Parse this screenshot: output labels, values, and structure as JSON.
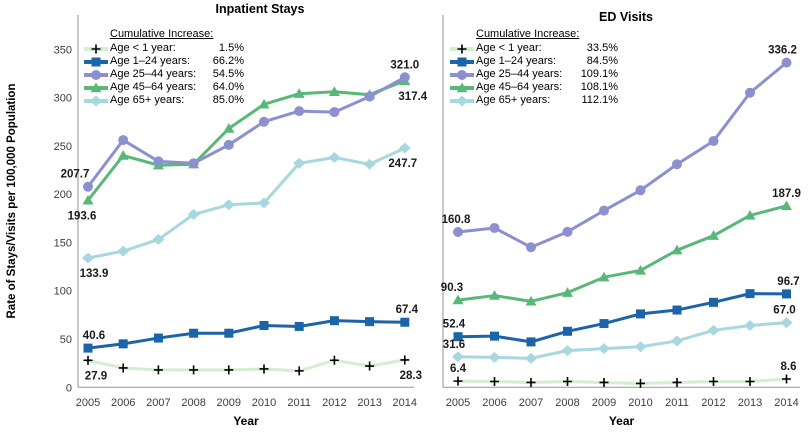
{
  "figure": {
    "y_axis_label": "Rate of Stays/Visits  per 100,000  Population",
    "x_axis_label": "Year"
  },
  "chart_data": [
    {
      "type": "line",
      "title": "Inpatient Stays",
      "xlabel": "Year",
      "ylabel": "Rate of Stays/Visits per 100,000 Population",
      "legend_title": "Cumulative Increase:",
      "legend_position": "top-left",
      "grid": false,
      "x": [
        2005,
        2006,
        2007,
        2008,
        2009,
        2010,
        2011,
        2012,
        2013,
        2014
      ],
      "ylim": [
        0,
        350
      ],
      "yticks": [
        0,
        50,
        100,
        150,
        200,
        250,
        300,
        350
      ],
      "series": [
        {
          "name": "Age < 1 year:",
          "pct": "1.5%",
          "marker": "plus",
          "color": "#d5edd0",
          "marker_color": "#000000",
          "values": [
            27.9,
            20,
            18,
            18,
            18,
            19,
            17,
            28,
            22,
            28.3
          ],
          "first_label": {
            "text": "27.9",
            "pos": "below",
            "dx": 8
          },
          "last_label": {
            "text": "28.3",
            "pos": "below",
            "dx": 6
          }
        },
        {
          "name": "Age 1–24 years:",
          "pct": "66.2%",
          "marker": "square",
          "color": "#1b64a9",
          "marker_color": "#1b64a9",
          "values": [
            40.6,
            45,
            51,
            56,
            56,
            64,
            63,
            69,
            68,
            67.4
          ],
          "first_label": {
            "text": "40.6",
            "pos": "above",
            "dx": 6
          },
          "last_label": {
            "text": "67.4",
            "pos": "above",
            "dx": 2
          }
        },
        {
          "name": "Age 25–44 years:",
          "pct": "54.5%",
          "marker": "circle",
          "color": "#8c90d0",
          "marker_color": "#8c90d0",
          "values": [
            207.7,
            256,
            234,
            232,
            251,
            275,
            286,
            285,
            301,
            321.0
          ],
          "first_label": {
            "text": "207.7",
            "pos": "above",
            "dx": -13
          },
          "last_label": {
            "text": "321.0",
            "pos": "above",
            "dx": 0
          }
        },
        {
          "name": "Age 45–64 years:",
          "pct": "64.0%",
          "marker": "triangle",
          "color": "#57b877",
          "marker_color": "#57b877",
          "values": [
            193.6,
            240,
            230,
            231,
            268,
            293,
            304,
            306,
            303,
            317.4
          ],
          "first_label": {
            "text": "193.6",
            "pos": "below",
            "dx": -6
          },
          "last_label": {
            "text": "317.4",
            "pos": "below",
            "dx": 8
          }
        },
        {
          "name": "Age 65+ years:",
          "pct": "85.0%",
          "marker": "diamond",
          "color": "#a8d7df",
          "marker_color": "#a8d7df",
          "values": [
            133.9,
            141,
            153,
            179,
            189,
            191,
            232,
            238,
            231,
            247.7
          ],
          "first_label": {
            "text": "133.9",
            "pos": "below",
            "dx": 6
          },
          "last_label": {
            "text": "247.7",
            "pos": "below",
            "dx": -2
          }
        }
      ]
    },
    {
      "type": "line",
      "title": "ED Visits",
      "xlabel": "Year",
      "ylabel": "",
      "legend_title": "Cumulative Increase:",
      "legend_position": "top-left",
      "grid": false,
      "x": [
        2005,
        2006,
        2007,
        2008,
        2009,
        2010,
        2011,
        2012,
        2013,
        2014
      ],
      "ylim": [
        0,
        350
      ],
      "yticks": [],
      "series": [
        {
          "name": "Age < 1 year:",
          "pct": "33.5%",
          "marker": "plus",
          "color": "#d5edd0",
          "marker_color": "#000000",
          "values": [
            6.4,
            6,
            5,
            6,
            5,
            4,
            5,
            6,
            6,
            8.6
          ],
          "first_label": {
            "text": "6.4",
            "pos": "above",
            "dx": 0
          },
          "last_label": {
            "text": "8.6",
            "pos": "above",
            "dx": 2
          }
        },
        {
          "name": "Age 1–24 years:",
          "pct": "84.5%",
          "marker": "square",
          "color": "#1b64a9",
          "marker_color": "#1b64a9",
          "values": [
            52.4,
            53,
            47,
            58,
            66,
            76,
            80,
            88,
            97,
            96.7
          ],
          "first_label": {
            "text": "52.4",
            "pos": "above",
            "dx": -4
          },
          "last_label": {
            "text": "96.7",
            "pos": "above",
            "dx": 2
          }
        },
        {
          "name": "Age 25–44 years:",
          "pct": "109.1%",
          "marker": "circle",
          "color": "#8c90d0",
          "marker_color": "#8c90d0",
          "values": [
            160.8,
            165,
            145,
            161,
            183,
            204,
            231,
            255,
            305,
            336.2
          ],
          "first_label": {
            "text": "160.8",
            "pos": "above",
            "dx": -2
          },
          "last_label": {
            "text": "336.2",
            "pos": "above",
            "dx": -4
          }
        },
        {
          "name": "Age 45–64 years:",
          "pct": "108.1%",
          "marker": "triangle",
          "color": "#57b877",
          "marker_color": "#57b877",
          "values": [
            90.3,
            95,
            89,
            98,
            114,
            121,
            142,
            157,
            178,
            187.9
          ],
          "first_label": {
            "text": "90.3",
            "pos": "above",
            "dx": -6
          },
          "last_label": {
            "text": "187.9",
            "pos": "above",
            "dx": 0
          }
        },
        {
          "name": "Age 65+ years:",
          "pct": "112.1%",
          "marker": "diamond",
          "color": "#a8d7df",
          "marker_color": "#a8d7df",
          "values": [
            31.6,
            31,
            30,
            38,
            40,
            42,
            48,
            59,
            64,
            67.0
          ],
          "first_label": {
            "text": "31.6",
            "pos": "above",
            "dx": -4
          },
          "last_label": {
            "text": "67.0",
            "pos": "above",
            "dx": -2
          }
        }
      ]
    }
  ]
}
